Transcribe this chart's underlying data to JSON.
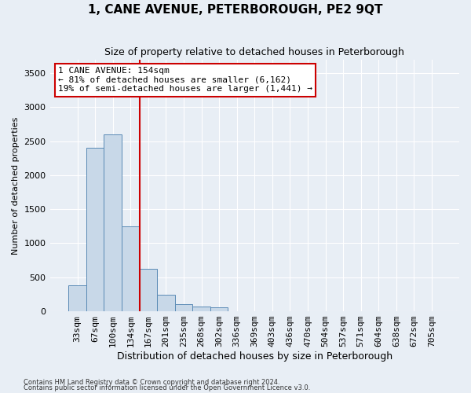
{
  "title": "1, CANE AVENUE, PETERBOROUGH, PE2 9QT",
  "subtitle": "Size of property relative to detached houses in Peterborough",
  "xlabel": "Distribution of detached houses by size in Peterborough",
  "ylabel": "Number of detached properties",
  "footnote1": "Contains HM Land Registry data © Crown copyright and database right 2024.",
  "footnote2": "Contains public sector information licensed under the Open Government Licence v3.0.",
  "categories": [
    "33sqm",
    "67sqm",
    "100sqm",
    "134sqm",
    "167sqm",
    "201sqm",
    "235sqm",
    "268sqm",
    "302sqm",
    "336sqm",
    "369sqm",
    "403sqm",
    "436sqm",
    "470sqm",
    "504sqm",
    "537sqm",
    "571sqm",
    "604sqm",
    "638sqm",
    "672sqm",
    "705sqm"
  ],
  "values": [
    380,
    2400,
    2600,
    1250,
    630,
    240,
    110,
    65,
    60,
    0,
    0,
    0,
    0,
    0,
    0,
    0,
    0,
    0,
    0,
    0,
    0
  ],
  "bar_color": "#c8d8e8",
  "bar_edge_color": "#5a8ab5",
  "vline_x": 3.5,
  "vline_color": "#cc0000",
  "annotation_line1": "1 CANE AVENUE: 154sqm",
  "annotation_line2": "← 81% of detached houses are smaller (6,162)",
  "annotation_line3": "19% of semi-detached houses are larger (1,441) →",
  "annotation_box_color": "#ffffff",
  "annotation_box_edge": "#cc0000",
  "ylim": [
    0,
    3700
  ],
  "yticks": [
    0,
    500,
    1000,
    1500,
    2000,
    2500,
    3000,
    3500
  ],
  "background_color": "#e8eef5",
  "grid_color": "#ffffff",
  "title_fontsize": 11,
  "subtitle_fontsize": 9,
  "xlabel_fontsize": 9,
  "ylabel_fontsize": 8,
  "tick_fontsize": 8,
  "annot_fontsize": 8
}
